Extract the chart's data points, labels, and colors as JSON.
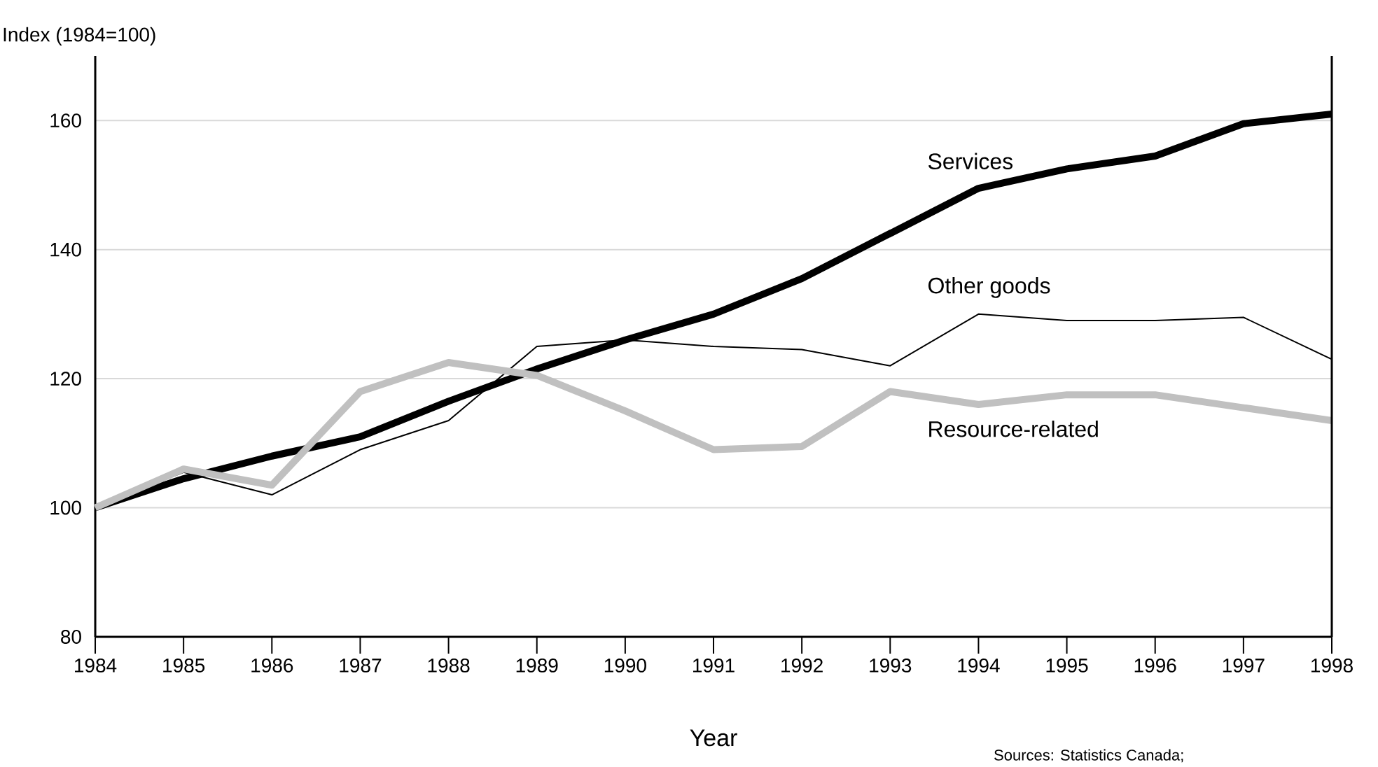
{
  "chart_data": {
    "type": "line",
    "xlabel": "Year",
    "ylabel": "Index (1984=100)",
    "x": [
      1984,
      1985,
      1986,
      1987,
      1988,
      1989,
      1990,
      1991,
      1992,
      1993,
      1994,
      1995,
      1996,
      1997,
      1998
    ],
    "series": [
      {
        "name": "Services",
        "color": "#000000",
        "values": [
          100,
          104.5,
          108,
          111,
          116.5,
          121.5,
          126,
          130,
          135.5,
          142.5,
          149.5,
          152.5,
          154.5,
          159.5,
          161
        ]
      },
      {
        "name": "Other goods",
        "color": "#000000",
        "values": [
          100,
          105.5,
          102,
          109,
          113.5,
          125,
          126,
          125,
          124.5,
          122,
          130,
          129,
          129,
          129.5,
          123
        ]
      },
      {
        "name": "Resource-related",
        "color": "#c0c0c0",
        "values": [
          100,
          106,
          103.5,
          118,
          122.5,
          120.5,
          115,
          109,
          109.5,
          118,
          116,
          117.5,
          117.5,
          115.5,
          113.5
        ]
      }
    ],
    "xlim": [
      1984,
      1998
    ],
    "ylim": [
      80,
      170
    ],
    "xticks": [
      1984,
      1985,
      1986,
      1987,
      1988,
      1989,
      1990,
      1991,
      1992,
      1993,
      1994,
      1995,
      1996,
      1997,
      1998
    ],
    "yticks": [
      80,
      100,
      120,
      140,
      160
    ],
    "grid": "y",
    "legend": false,
    "marker": "none",
    "line_style": "solid",
    "annotations": [
      "Sources: Statistics Canada;"
    ]
  }
}
